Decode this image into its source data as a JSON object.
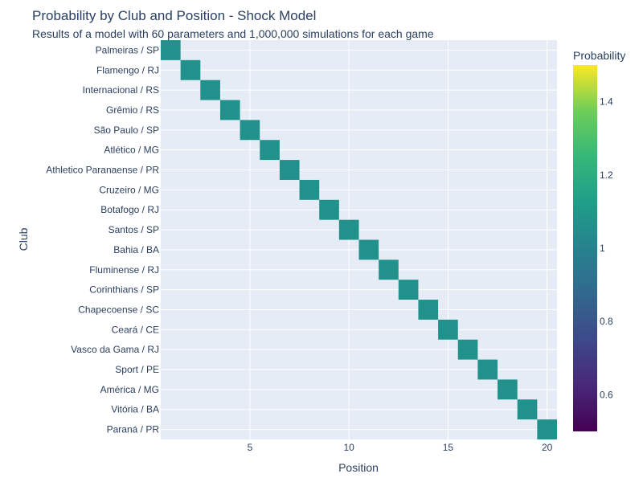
{
  "chart_data": {
    "type": "heatmap",
    "title": "Probability by Club and Position - Shock Model",
    "subtitle": "Results of a model with 60 parameters and 1,000,000 simulations for each game",
    "xlabel": "Position",
    "ylabel": "Club",
    "x_ticks": [
      5,
      10,
      15,
      20
    ],
    "xlim": [
      0.5,
      20.5
    ],
    "clubs": [
      "Palmeiras / SP",
      "Flamengo / RJ",
      "Internacional / RS",
      "Grêmio / RS",
      "São Paulo / SP",
      "Atlético / MG",
      "Athletico Paranaense / PR",
      "Cruzeiro / MG",
      "Botafogo / RJ",
      "Santos / SP",
      "Bahia / BA",
      "Fluminense / RJ",
      "Corinthians / SP",
      "Chapecoense / SC",
      "Ceará / CE",
      "Vasco da Gama / RJ",
      "Sport / PE",
      "América / MG",
      "Vitória / BA",
      "Paraná / PR"
    ],
    "cells": [
      {
        "club": "Palmeiras / SP",
        "position": 1,
        "value": 1
      },
      {
        "club": "Flamengo / RJ",
        "position": 2,
        "value": 1
      },
      {
        "club": "Internacional / RS",
        "position": 3,
        "value": 1
      },
      {
        "club": "Grêmio / RS",
        "position": 4,
        "value": 1
      },
      {
        "club": "São Paulo / SP",
        "position": 5,
        "value": 1
      },
      {
        "club": "Atlético / MG",
        "position": 6,
        "value": 1
      },
      {
        "club": "Athletico Paranaense / PR",
        "position": 7,
        "value": 1
      },
      {
        "club": "Cruzeiro / MG",
        "position": 8,
        "value": 1
      },
      {
        "club": "Botafogo / RJ",
        "position": 9,
        "value": 1
      },
      {
        "club": "Santos / SP",
        "position": 10,
        "value": 1
      },
      {
        "club": "Bahia / BA",
        "position": 11,
        "value": 1
      },
      {
        "club": "Fluminense / RJ",
        "position": 12,
        "value": 1
      },
      {
        "club": "Corinthians / SP",
        "position": 13,
        "value": 1
      },
      {
        "club": "Chapecoense / SC",
        "position": 14,
        "value": 1
      },
      {
        "club": "Ceará / CE",
        "position": 15,
        "value": 1
      },
      {
        "club": "Vasco da Gama / RJ",
        "position": 16,
        "value": 1
      },
      {
        "club": "Sport / PE",
        "position": 17,
        "value": 1
      },
      {
        "club": "América / MG",
        "position": 18,
        "value": 1
      },
      {
        "club": "Vitória / BA",
        "position": 19,
        "value": 1
      },
      {
        "club": "Paraná / PR",
        "position": 20,
        "value": 1
      }
    ],
    "colorbar": {
      "title": "Probability",
      "colorscale": "viridis",
      "range": [
        0.5,
        1.5
      ],
      "ticks": [
        0.6,
        0.8,
        1,
        1.2,
        1.4
      ]
    },
    "grid": true,
    "colors": {
      "plot_bg": "#e5ecf6",
      "cell": "#21918c",
      "text": "#2a3f5f"
    }
  }
}
